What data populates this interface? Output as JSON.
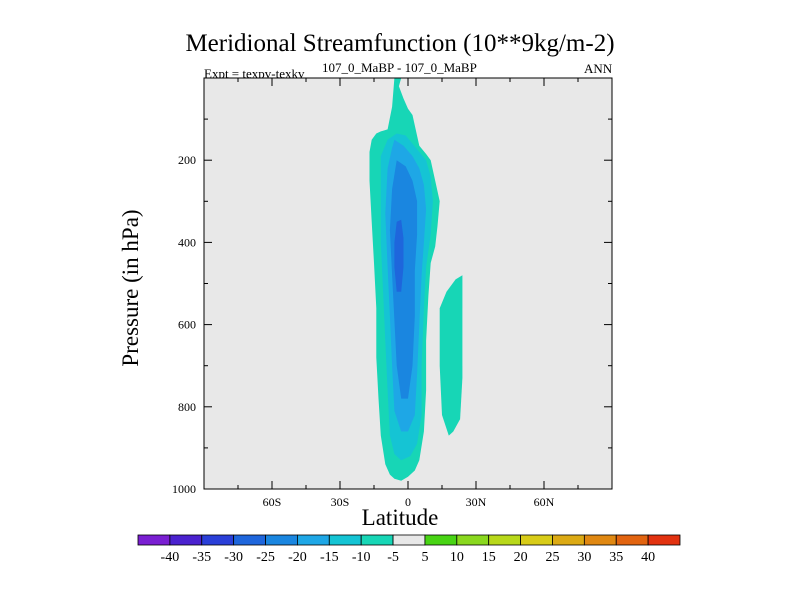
{
  "chart_data": {
    "type": "heatmap",
    "title": "Meridional Streamfunction (10**9kg/m-2)",
    "subtitle": "107_0_MaBP - 107_0_MaBP",
    "left_label": "Expt = texpv-texkv",
    "right_label": "ANN",
    "xlabel": "Latitude",
    "ylabel": "Pressure (in hPa)",
    "xlim": [
      -90,
      90
    ],
    "ylim": [
      1000,
      0
    ],
    "x_ticks": [
      {
        "value": -60,
        "label": "60S"
      },
      {
        "value": -30,
        "label": "30S"
      },
      {
        "value": 0,
        "label": "0"
      },
      {
        "value": 30,
        "label": "30N"
      },
      {
        "value": 60,
        "label": "60N"
      }
    ],
    "y_ticks": [
      {
        "value": 200,
        "label": "200"
      },
      {
        "value": 400,
        "label": "400"
      },
      {
        "value": 600,
        "label": "600"
      },
      {
        "value": 800,
        "label": "800"
      },
      {
        "value": 1000,
        "label": "1000"
      }
    ],
    "contour_levels": [
      -40,
      -35,
      -30,
      -25,
      -20,
      -15,
      -10,
      -5,
      5,
      10,
      15,
      20,
      25,
      30,
      35,
      40
    ],
    "colorbar_colors": [
      "#7a1fd2",
      "#4b22cf",
      "#2a3fd8",
      "#1e66dc",
      "#1a86e0",
      "#1ea7e6",
      "#15c4d4",
      "#17d6b6",
      "#e8e8e8",
      "#48d414",
      "#8ad81e",
      "#b8d81a",
      "#d8cc18",
      "#dcaa14",
      "#e08812",
      "#e26410",
      "#e23210"
    ],
    "background_color": "#e8e8e8",
    "regions": [
      {
        "name": "band-outer-minus5",
        "level": -5,
        "color": "#17d6b6",
        "points": [
          [
            -6,
            0
          ],
          [
            -3,
            0
          ],
          [
            -4,
            20
          ],
          [
            -2,
            50
          ],
          [
            0,
            75
          ],
          [
            2,
            90
          ],
          [
            5,
            165
          ],
          [
            8,
            185
          ],
          [
            10,
            200
          ],
          [
            12,
            250
          ],
          [
            14,
            300
          ],
          [
            13,
            360
          ],
          [
            12,
            410
          ],
          [
            10,
            450
          ],
          [
            9,
            530
          ],
          [
            8,
            640
          ],
          [
            8,
            760
          ],
          [
            7,
            860
          ],
          [
            5,
            930
          ],
          [
            3,
            955
          ],
          [
            0,
            970
          ],
          [
            -3,
            980
          ],
          [
            -6,
            975
          ],
          [
            -8,
            965
          ],
          [
            -10,
            940
          ],
          [
            -12,
            870
          ],
          [
            -13,
            780
          ],
          [
            -14,
            680
          ],
          [
            -14,
            560
          ],
          [
            -15,
            450
          ],
          [
            -16,
            350
          ],
          [
            -17,
            250
          ],
          [
            -17,
            180
          ],
          [
            -16,
            150
          ],
          [
            -14,
            135
          ],
          [
            -12,
            130
          ],
          [
            -9,
            125
          ],
          [
            -7,
            70
          ]
        ]
      },
      {
        "name": "lobe-right-minus5",
        "level": -5,
        "color": "#17d6b6",
        "points": [
          [
            14,
            560
          ],
          [
            17,
            520
          ],
          [
            21,
            490
          ],
          [
            24,
            480
          ],
          [
            24,
            600
          ],
          [
            24,
            730
          ],
          [
            23,
            830
          ],
          [
            20,
            860
          ],
          [
            18,
            870
          ],
          [
            15,
            820
          ],
          [
            14,
            700
          ]
        ]
      },
      {
        "name": "band-minus10",
        "level": -10,
        "color": "#15c4d4",
        "points": [
          [
            -5,
            135
          ],
          [
            -1,
            140
          ],
          [
            2,
            160
          ],
          [
            5,
            180
          ],
          [
            8,
            200
          ],
          [
            10,
            240
          ],
          [
            11,
            300
          ],
          [
            10,
            380
          ],
          [
            8,
            460
          ],
          [
            7,
            560
          ],
          [
            6,
            700
          ],
          [
            6,
            820
          ],
          [
            4,
            890
          ],
          [
            1,
            920
          ],
          [
            -3,
            930
          ],
          [
            -6,
            915
          ],
          [
            -8,
            870
          ],
          [
            -9,
            760
          ],
          [
            -10,
            640
          ],
          [
            -11,
            520
          ],
          [
            -12,
            400
          ],
          [
            -12,
            280
          ],
          [
            -12,
            190
          ],
          [
            -9,
            150
          ]
        ]
      },
      {
        "name": "band-minus15",
        "level": -15,
        "color": "#1ea7e6",
        "points": [
          [
            -6,
            150
          ],
          [
            -2,
            165
          ],
          [
            2,
            190
          ],
          [
            5,
            220
          ],
          [
            7,
            260
          ],
          [
            8,
            320
          ],
          [
            7,
            400
          ],
          [
            6,
            480
          ],
          [
            5,
            600
          ],
          [
            4,
            720
          ],
          [
            3,
            820
          ],
          [
            0,
            860
          ],
          [
            -3,
            860
          ],
          [
            -6,
            810
          ],
          [
            -7,
            700
          ],
          [
            -8,
            580
          ],
          [
            -9,
            460
          ],
          [
            -10,
            330
          ],
          [
            -9,
            220
          ],
          [
            -7,
            170
          ]
        ]
      },
      {
        "name": "band-minus20",
        "level": -20,
        "color": "#1a86e0",
        "points": [
          [
            -5,
            200
          ],
          [
            -1,
            215
          ],
          [
            2,
            250
          ],
          [
            4,
            300
          ],
          [
            4,
            380
          ],
          [
            3,
            470
          ],
          [
            3,
            580
          ],
          [
            2,
            700
          ],
          [
            0,
            780
          ],
          [
            -3,
            780
          ],
          [
            -5,
            700
          ],
          [
            -6,
            590
          ],
          [
            -7,
            480
          ],
          [
            -8,
            370
          ],
          [
            -7,
            270
          ]
        ]
      },
      {
        "name": "band-minus25",
        "level": -25,
        "color": "#1e66dc",
        "points": [
          [
            -5,
            350
          ],
          [
            -3,
            345
          ],
          [
            -2,
            390
          ],
          [
            -2,
            460
          ],
          [
            -3,
            520
          ],
          [
            -5,
            520
          ],
          [
            -6,
            460
          ],
          [
            -6,
            400
          ]
        ]
      }
    ]
  }
}
